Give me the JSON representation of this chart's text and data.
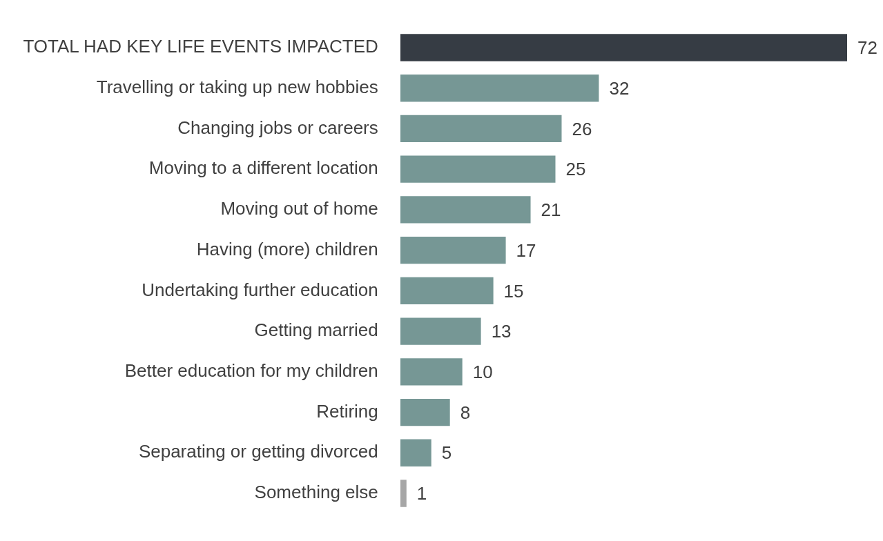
{
  "chart_data": {
    "type": "bar",
    "orientation": "horizontal",
    "categories": [
      "TOTAL HAD KEY LIFE EVENTS IMPACTED",
      "Travelling or taking up new hobbies",
      "Changing jobs or careers",
      "Moving to a different location",
      "Moving out of home",
      "Having (more) children",
      "Undertaking further education",
      "Getting married",
      "Better education for my children",
      "Retiring",
      "Separating or getting divorced",
      "Something else"
    ],
    "values": [
      72,
      32,
      26,
      25,
      21,
      17,
      15,
      13,
      10,
      8,
      5,
      1
    ],
    "colors": [
      "#363c44",
      "#769795",
      "#769795",
      "#769795",
      "#769795",
      "#769795",
      "#769795",
      "#769795",
      "#769795",
      "#769795",
      "#769795",
      "#a6a6a6"
    ],
    "data_labels": true,
    "legend": false
  }
}
